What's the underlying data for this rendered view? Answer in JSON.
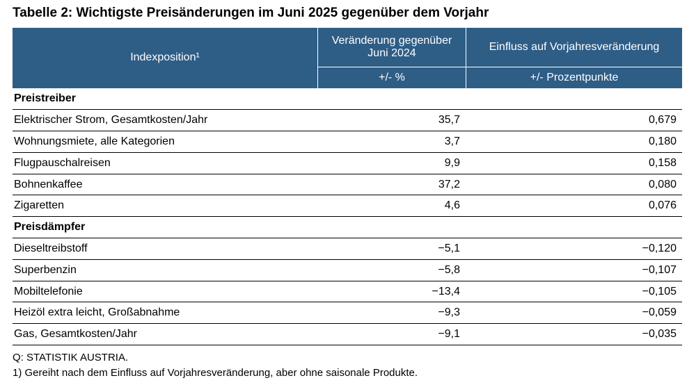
{
  "title": "Tabelle 2: Wichtigste Preisänderungen im Juni 2025 gegenüber dem Vorjahr",
  "header": {
    "col1": "Indexposition¹",
    "col2": "Veränderung gegenüber Juni 2024",
    "col3": "Einfluss auf Vorjahresveränderung",
    "unit2": "+/- %",
    "unit3": "+/- Prozentpunkte"
  },
  "sections": [
    {
      "title": "Preistreiber",
      "rows": [
        [
          "Elektrischer Strom, Gesamtkosten/Jahr",
          "35,7",
          "0,679"
        ],
        [
          "Wohnungsmiete, alle Kategorien",
          "3,7",
          "0,180"
        ],
        [
          "Flugpauschalreisen",
          "9,9",
          "0,158"
        ],
        [
          "Bohnenkaffee",
          "37,2",
          "0,080"
        ],
        [
          "Zigaretten",
          "4,6",
          "0,076"
        ]
      ]
    },
    {
      "title": "Preisdämpfer",
      "rows": [
        [
          "Dieseltreibstoff",
          "−5,1",
          "−0,120"
        ],
        [
          "Superbenzin",
          "−5,8",
          "−0,107"
        ],
        [
          "Mobiltelefonie",
          "−13,4",
          "−0,105"
        ],
        [
          "Heizöl extra leicht, Großabnahme",
          "−9,3",
          "−0,059"
        ],
        [
          "Gas, Gesamtkosten/Jahr",
          "−9,1",
          "−0,035"
        ]
      ]
    }
  ],
  "footnotes": [
    "Q: STATISTIK AUSTRIA.",
    "1) Gereiht nach dem Einfluss auf Vorjahresveränderung, aber ohne saisonale Produkte."
  ]
}
